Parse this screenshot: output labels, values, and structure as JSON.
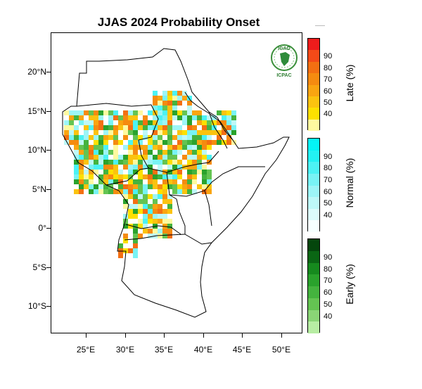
{
  "title": "JJAS 2024 Probability Onset",
  "logo": {
    "top_text": "IGAD",
    "bottom_text": "ICPAC"
  },
  "axes": {
    "lat_labels": [
      "20°N",
      "15°N",
      "10°N",
      "5°N",
      "0°",
      "5°S",
      "10°S"
    ],
    "lon_labels": [
      "25°E",
      "30°E",
      "35°E",
      "40°E",
      "45°E",
      "50°E"
    ]
  },
  "legend": {
    "late": {
      "title": "Late (%)",
      "ticks": [
        "90",
        "80",
        "70",
        "60",
        "50",
        "40"
      ],
      "colors": [
        "#ee1c1c",
        "#f44a18",
        "#f36f12",
        "#f58b10",
        "#f9a511",
        "#fbc30f",
        "#fde000",
        "#fef9a0"
      ]
    },
    "normal": {
      "title": "Normal (%)",
      "ticks": [
        "90",
        "80",
        "70",
        "60",
        "50",
        "40"
      ],
      "colors": [
        "#04f3f6",
        "#23f1f3",
        "#4cf2f4",
        "#78f3f5",
        "#9df5f7",
        "#bef8f8",
        "#dcfbfb",
        "#f6ffff"
      ]
    },
    "early": {
      "title": "Early (%)",
      "ticks": [
        "90",
        "80",
        "70",
        "60",
        "50",
        "40"
      ],
      "colors": [
        "#04460c",
        "#0a6614",
        "#168a1e",
        "#2aa22c",
        "#44b33e",
        "#64c452",
        "#8ad576",
        "#b7eda3"
      ]
    }
  }
}
